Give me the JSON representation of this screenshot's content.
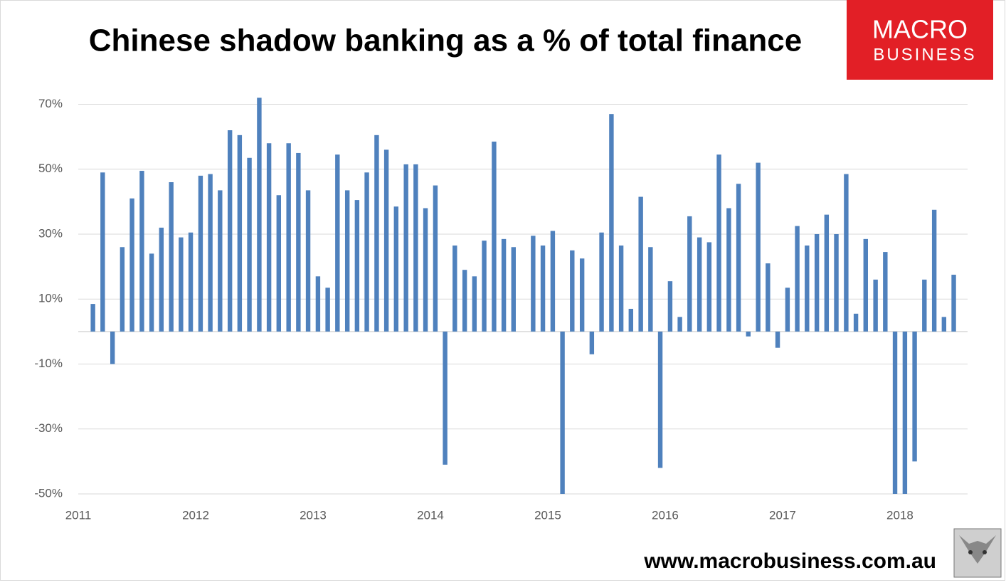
{
  "chart_data": {
    "type": "bar",
    "title": "Chinese shadow banking as a % of total finance",
    "logo": [
      "MACRO",
      "BUSINESS"
    ],
    "source": "www.macrobusiness.com.au",
    "color": "#4f81bd",
    "grid": true,
    "xlim": [
      2011,
      2018.576
    ],
    "xticks": [
      2011,
      2012,
      2013,
      2014,
      2015,
      2016,
      2017,
      2018
    ],
    "ylim": [
      -50,
      78
    ],
    "yticks": [
      {
        "value": -50,
        "label": "-50%"
      },
      {
        "value": -30,
        "label": "-30%"
      },
      {
        "value": -10,
        "label": "-10%"
      },
      {
        "value": 10,
        "label": "10%"
      },
      {
        "value": 30,
        "label": "30%"
      },
      {
        "value": 50,
        "label": "50%"
      },
      {
        "value": 70,
        "label": "70%"
      }
    ],
    "x": [
      2011.125,
      2011.208,
      2011.292,
      2011.375,
      2011.458,
      2011.542,
      2011.625,
      2011.708,
      2011.792,
      2011.875,
      2011.958,
      2012.042,
      2012.125,
      2012.208,
      2012.292,
      2012.375,
      2012.458,
      2012.542,
      2012.625,
      2012.708,
      2012.792,
      2012.875,
      2012.958,
      2013.042,
      2013.125,
      2013.208,
      2013.292,
      2013.375,
      2013.458,
      2013.542,
      2013.625,
      2013.708,
      2013.792,
      2013.875,
      2013.958,
      2014.042,
      2014.125,
      2014.208,
      2014.292,
      2014.375,
      2014.458,
      2014.542,
      2014.625,
      2014.708,
      2014.875,
      2014.958,
      2015.042,
      2015.125,
      2015.208,
      2015.292,
      2015.375,
      2015.458,
      2015.542,
      2015.625,
      2015.708,
      2015.792,
      2015.875,
      2015.958,
      2016.042,
      2016.125,
      2016.208,
      2016.292,
      2016.375,
      2016.458,
      2016.542,
      2016.625,
      2016.708,
      2016.792,
      2016.875,
      2016.958,
      2017.042,
      2017.125,
      2017.208,
      2017.292,
      2017.375,
      2017.458,
      2017.542,
      2017.625,
      2017.708,
      2017.792,
      2017.875,
      2017.958,
      2018.042,
      2018.125,
      2018.208,
      2018.292,
      2018.375,
      2018.458
    ],
    "values": [
      8.5,
      49,
      -10,
      26,
      41,
      49.5,
      24,
      32,
      46,
      29,
      30.5,
      48,
      48.5,
      43.5,
      62,
      60.5,
      53.5,
      72,
      58,
      42,
      58,
      55,
      43.5,
      17,
      13.5,
      54.5,
      43.5,
      40.5,
      49,
      60.5,
      56,
      38.5,
      51.5,
      51.5,
      38,
      45,
      -41,
      26.5,
      19,
      17,
      28,
      58.5,
      28.5,
      26,
      29.5,
      26.5,
      31,
      -50,
      25,
      22.5,
      -7,
      30.5,
      67,
      26.5,
      7,
      41.5,
      26,
      -42,
      15.5,
      4.5,
      35.5,
      29,
      27.5,
      54.5,
      38,
      45.5,
      -1.5,
      52,
      21,
      -5,
      13.5,
      32.5,
      26.5,
      30,
      36,
      30,
      48.5,
      5.5,
      28.5,
      16,
      24.5,
      -50,
      -50,
      -40,
      16,
      37.5,
      4.5,
      17.5
    ]
  }
}
